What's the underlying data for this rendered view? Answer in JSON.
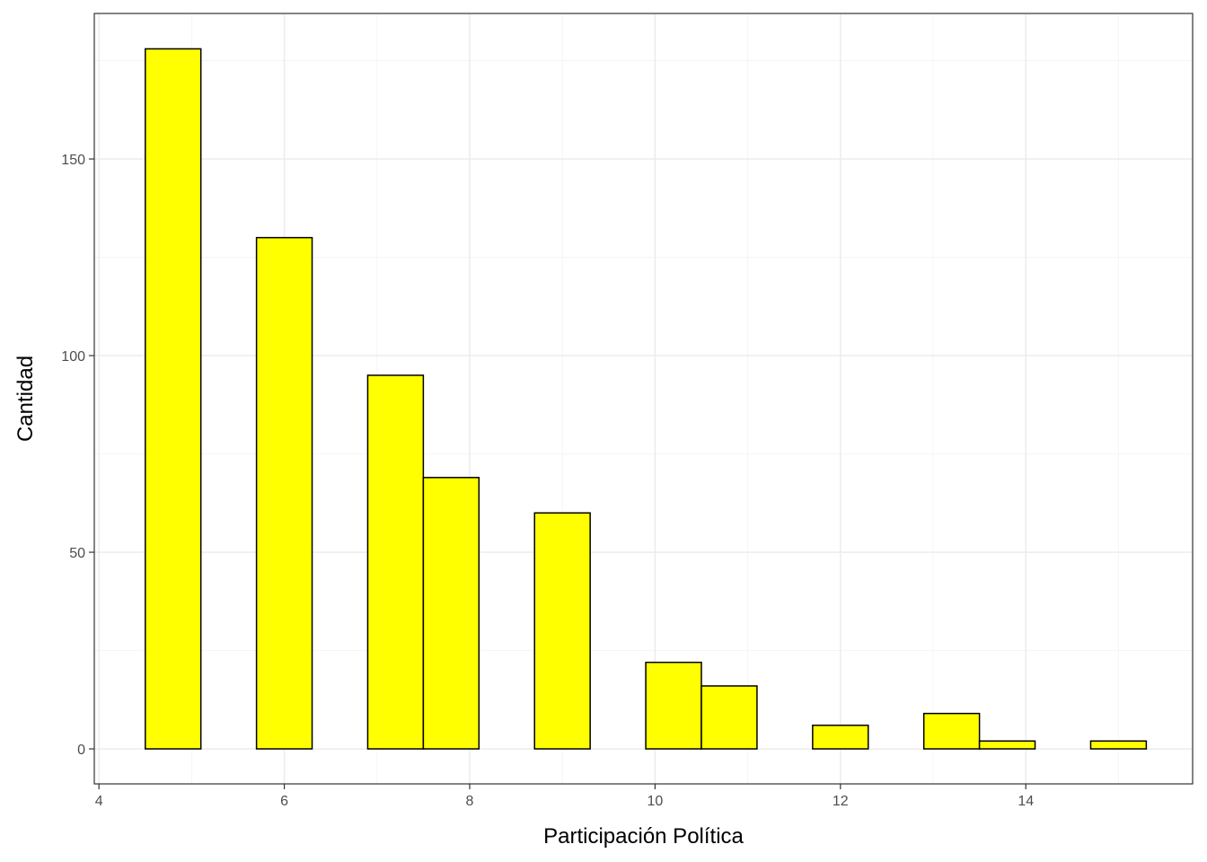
{
  "chart_data": {
    "type": "bar",
    "subtype": "histogram",
    "title": "",
    "xlabel": "Participación Política",
    "ylabel": "Cantidad",
    "xlim": [
      3.95,
      15.8
    ],
    "ylim": [
      -8.9,
      187
    ],
    "x_ticks": [
      4,
      6,
      8,
      10,
      12,
      14
    ],
    "y_ticks": [
      0,
      50,
      100,
      150
    ],
    "grid": true,
    "legend": "none",
    "bin_width": 0.6,
    "bins": [
      {
        "x0": 4.5,
        "x1": 5.1,
        "count": 178
      },
      {
        "x0": 5.1,
        "x1": 5.7,
        "count": 0
      },
      {
        "x0": 5.7,
        "x1": 6.3,
        "count": 130
      },
      {
        "x0": 6.3,
        "x1": 6.9,
        "count": 0
      },
      {
        "x0": 6.9,
        "x1": 7.5,
        "count": 95
      },
      {
        "x0": 7.5,
        "x1": 8.1,
        "count": 69
      },
      {
        "x0": 8.1,
        "x1": 8.7,
        "count": 0
      },
      {
        "x0": 8.7,
        "x1": 9.3,
        "count": 60
      },
      {
        "x0": 9.3,
        "x1": 9.9,
        "count": 0
      },
      {
        "x0": 9.9,
        "x1": 10.5,
        "count": 22
      },
      {
        "x0": 10.5,
        "x1": 11.1,
        "count": 16
      },
      {
        "x0": 11.1,
        "x1": 11.7,
        "count": 0
      },
      {
        "x0": 11.7,
        "x1": 12.3,
        "count": 6
      },
      {
        "x0": 12.3,
        "x1": 12.9,
        "count": 0
      },
      {
        "x0": 12.9,
        "x1": 13.5,
        "count": 9
      },
      {
        "x0": 13.5,
        "x1": 14.1,
        "count": 2
      },
      {
        "x0": 14.1,
        "x1": 14.7,
        "count": 0
      },
      {
        "x0": 14.7,
        "x1": 15.3,
        "count": 2
      }
    ],
    "colors": {
      "bar_fill": "#ffff00",
      "bar_stroke": "#000000",
      "panel_border": "#333333",
      "grid_major": "#ebebeb",
      "grid_minor": "#f5f5f5",
      "tick_text": "#4d4d4d"
    }
  }
}
